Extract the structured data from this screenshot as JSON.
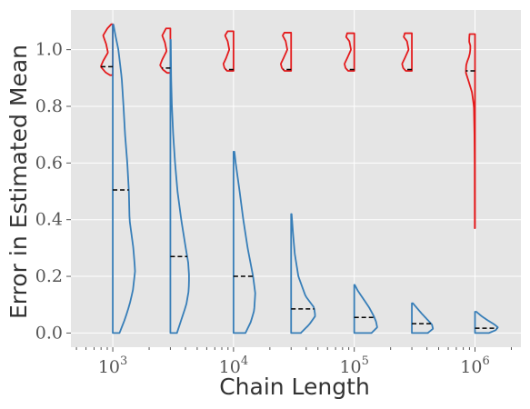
{
  "chart_data": {
    "type": "violin",
    "subtype": "split-violin",
    "xlabel": "Chain Length",
    "ylabel": "Error in Estimated Mean",
    "xscale": "log",
    "xlim": [
      450,
      2400000
    ],
    "ylim": [
      -0.05,
      1.14
    ],
    "grid": true,
    "x_ticks": [
      {
        "value": 1000,
        "base": "10",
        "exp": "3"
      },
      {
        "value": 10000,
        "base": "10",
        "exp": "4"
      },
      {
        "value": 100000,
        "base": "10",
        "exp": "5"
      },
      {
        "value": 1000000,
        "base": "10",
        "exp": "6"
      }
    ],
    "y_ticks": [
      {
        "value": 0.0,
        "label": "0.0"
      },
      {
        "value": 0.2,
        "label": "0.2"
      },
      {
        "value": 0.4,
        "label": "0.4"
      },
      {
        "value": 0.6,
        "label": "0.6"
      },
      {
        "value": 0.8,
        "label": "0.8"
      },
      {
        "value": 1.0,
        "label": "1.0"
      }
    ],
    "chain_lengths": [
      1000,
      3000,
      10000,
      30000,
      100000,
      300000,
      1000000
    ],
    "colors": {
      "left": "#e41a1c",
      "right": "#377eb8",
      "median": "#000000",
      "background": "#e5e5e5",
      "grid": "#ffffff"
    },
    "series": [
      {
        "side": "left",
        "medians": [
          0.94,
          0.935,
          0.93,
          0.93,
          0.93,
          0.93,
          0.925
        ],
        "violins": [
          {
            "ymin": 0.91,
            "ymax": 1.09,
            "width": 0.1,
            "profile": [
              [
                0.91,
                0.22
              ],
              [
                0.92,
                0.6
              ],
              [
                0.94,
                1.0
              ],
              [
                0.96,
                0.8
              ],
              [
                0.99,
                0.4
              ],
              [
                1.02,
                0.55
              ],
              [
                1.05,
                0.8
              ],
              [
                1.075,
                0.45
              ],
              [
                1.09,
                0.12
              ]
            ]
          },
          {
            "ymin": 0.918,
            "ymax": 1.075,
            "width": 0.09,
            "profile": [
              [
                0.918,
                0.3
              ],
              [
                0.93,
                0.7
              ],
              [
                0.945,
                0.95
              ],
              [
                0.965,
                0.75
              ],
              [
                0.995,
                0.35
              ],
              [
                1.025,
                0.5
              ],
              [
                1.05,
                0.75
              ],
              [
                1.075,
                0.4
              ]
            ]
          },
          {
            "ymin": 0.925,
            "ymax": 1.065,
            "width": 0.088,
            "profile": [
              [
                0.925,
                0.6
              ],
              [
                0.935,
                0.85
              ],
              [
                0.95,
                0.95
              ],
              [
                0.97,
                0.7
              ],
              [
                1.0,
                0.4
              ],
              [
                1.03,
                0.55
              ],
              [
                1.05,
                0.8
              ],
              [
                1.065,
                0.55
              ]
            ]
          },
          {
            "ymin": 0.925,
            "ymax": 1.06,
            "width": 0.09,
            "profile": [
              [
                0.925,
                0.6
              ],
              [
                0.935,
                0.85
              ],
              [
                0.95,
                0.95
              ],
              [
                0.97,
                0.7
              ],
              [
                1.0,
                0.35
              ],
              [
                1.03,
                0.5
              ],
              [
                1.05,
                0.78
              ],
              [
                1.06,
                0.62
              ]
            ]
          },
          {
            "ymin": 0.925,
            "ymax": 1.058,
            "width": 0.09,
            "profile": [
              [
                0.925,
                0.55
              ],
              [
                0.935,
                0.8
              ],
              [
                0.95,
                0.9
              ],
              [
                0.97,
                0.65
              ],
              [
                1.0,
                0.3
              ],
              [
                1.03,
                0.45
              ],
              [
                1.045,
                0.75
              ],
              [
                1.058,
                0.65
              ]
            ]
          },
          {
            "ymin": 0.925,
            "ymax": 1.058,
            "width": 0.09,
            "profile": [
              [
                0.925,
                0.55
              ],
              [
                0.935,
                0.8
              ],
              [
                0.95,
                0.9
              ],
              [
                0.97,
                0.65
              ],
              [
                1.0,
                0.3
              ],
              [
                1.03,
                0.45
              ],
              [
                1.045,
                0.75
              ],
              [
                1.058,
                0.65
              ]
            ]
          },
          {
            "ymin": 0.37,
            "ymax": 1.055,
            "width": 0.09,
            "profile": [
              [
                0.37,
                0.02
              ],
              [
                0.6,
                0.03
              ],
              [
                0.7,
                0.05
              ],
              [
                0.8,
                0.1
              ],
              [
                0.85,
                0.28
              ],
              [
                0.89,
                0.6
              ],
              [
                0.92,
                0.85
              ],
              [
                0.95,
                0.8
              ],
              [
                0.98,
                0.5
              ],
              [
                1.01,
                0.4
              ],
              [
                1.03,
                0.55
              ],
              [
                1.055,
                0.5
              ]
            ]
          }
        ]
      },
      {
        "side": "right",
        "medians": [
          0.505,
          0.27,
          0.2,
          0.085,
          0.055,
          0.033,
          0.017
        ],
        "violins": [
          {
            "ymin": 0.0,
            "ymax": 1.088,
            "width": 0.185,
            "profile": [
              [
                0.0,
                0.3
              ],
              [
                0.05,
                0.55
              ],
              [
                0.1,
                0.75
              ],
              [
                0.15,
                0.9
              ],
              [
                0.22,
                1.0
              ],
              [
                0.3,
                0.92
              ],
              [
                0.4,
                0.75
              ],
              [
                0.5,
                0.72
              ],
              [
                0.6,
                0.65
              ],
              [
                0.7,
                0.55
              ],
              [
                0.8,
                0.48
              ],
              [
                0.9,
                0.4
              ],
              [
                1.0,
                0.25
              ],
              [
                1.05,
                0.12
              ],
              [
                1.088,
                0.03
              ]
            ]
          },
          {
            "ymin": 0.0,
            "ymax": 1.035,
            "width": 0.155,
            "profile": [
              [
                0.0,
                0.35
              ],
              [
                0.05,
                0.6
              ],
              [
                0.1,
                0.85
              ],
              [
                0.15,
                0.98
              ],
              [
                0.2,
                1.0
              ],
              [
                0.25,
                0.95
              ],
              [
                0.3,
                0.82
              ],
              [
                0.4,
                0.58
              ],
              [
                0.5,
                0.38
              ],
              [
                0.6,
                0.25
              ],
              [
                0.7,
                0.15
              ],
              [
                0.8,
                0.08
              ],
              [
                0.9,
                0.04
              ],
              [
                1.035,
                0.02
              ]
            ]
          },
          {
            "ymin": 0.0,
            "ymax": 0.64,
            "width": 0.18,
            "profile": [
              [
                0.0,
                0.55
              ],
              [
                0.04,
                0.8
              ],
              [
                0.08,
                0.95
              ],
              [
                0.14,
                1.0
              ],
              [
                0.2,
                0.9
              ],
              [
                0.3,
                0.65
              ],
              [
                0.4,
                0.45
              ],
              [
                0.5,
                0.28
              ],
              [
                0.6,
                0.1
              ],
              [
                0.64,
                0.04
              ]
            ]
          },
          {
            "ymin": 0.0,
            "ymax": 0.42,
            "width": 0.2,
            "profile": [
              [
                0.0,
                0.4
              ],
              [
                0.03,
                0.75
              ],
              [
                0.06,
                1.0
              ],
              [
                0.09,
                0.95
              ],
              [
                0.13,
                0.6
              ],
              [
                0.2,
                0.3
              ],
              [
                0.28,
                0.15
              ],
              [
                0.35,
                0.08
              ],
              [
                0.42,
                0.02
              ]
            ]
          },
          {
            "ymin": 0.0,
            "ymax": 0.17,
            "width": 0.19,
            "profile": [
              [
                0.0,
                0.75
              ],
              [
                0.02,
                1.0
              ],
              [
                0.04,
                0.95
              ],
              [
                0.06,
                0.85
              ],
              [
                0.09,
                0.65
              ],
              [
                0.12,
                0.4
              ],
              [
                0.15,
                0.15
              ],
              [
                0.17,
                0.02
              ]
            ]
          },
          {
            "ymin": 0.0,
            "ymax": 0.105,
            "width": 0.175,
            "profile": [
              [
                0.0,
                0.75
              ],
              [
                0.015,
                1.0
              ],
              [
                0.03,
                0.95
              ],
              [
                0.05,
                0.7
              ],
              [
                0.07,
                0.45
              ],
              [
                0.09,
                0.22
              ],
              [
                0.105,
                0.05
              ]
            ]
          },
          {
            "ymin": 0.0,
            "ymax": 0.075,
            "width": 0.19,
            "profile": [
              [
                0.0,
                0.6
              ],
              [
                0.01,
                0.9
              ],
              [
                0.02,
                1.0
              ],
              [
                0.03,
                0.85
              ],
              [
                0.045,
                0.55
              ],
              [
                0.06,
                0.28
              ],
              [
                0.075,
                0.06
              ]
            ]
          }
        ]
      }
    ]
  }
}
